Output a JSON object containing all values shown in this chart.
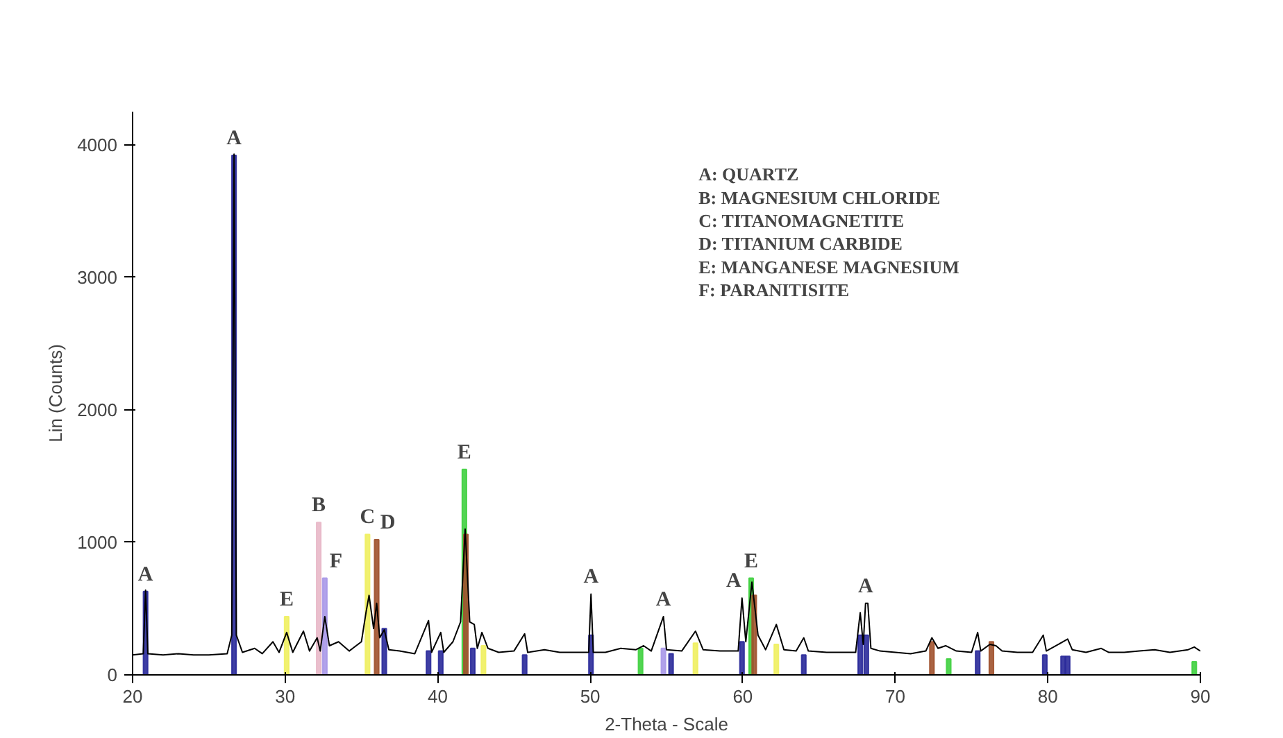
{
  "chart_data": {
    "type": "line",
    "xlabel": "2-Theta - Scale",
    "ylabel": "Lin (Counts)",
    "xlim": [
      20,
      90
    ],
    "ylim": [
      0,
      4250
    ],
    "xticks": [
      20,
      30,
      40,
      50,
      60,
      70,
      80,
      90
    ],
    "yticks": [
      0,
      1000,
      2000,
      3000,
      4000
    ],
    "grid": false,
    "line_style": "solid",
    "series": [
      {
        "color": "#000000",
        "x": [
          20,
          20.7,
          20.85,
          21.0,
          22,
          23,
          24,
          25,
          26.2,
          26.5,
          26.65,
          26.8,
          27.2,
          28,
          28.5,
          29.2,
          29.6,
          30.1,
          30.5,
          31.2,
          31.6,
          32.1,
          32.3,
          32.6,
          32.9,
          33.5,
          34.2,
          35.0,
          35.3,
          35.5,
          35.8,
          36.0,
          36.2,
          36.5,
          36.8,
          37.5,
          38.5,
          39.4,
          39.6,
          40.2,
          40.4,
          41.0,
          41.5,
          41.8,
          42.1,
          42.4,
          42.6,
          42.9,
          43.3,
          44,
          45.0,
          45.7,
          45.9,
          47,
          48,
          49,
          49.9,
          50.05,
          50.2,
          51,
          52,
          53,
          53.5,
          54.0,
          54.8,
          55.0,
          56,
          56.9,
          57.4,
          58.5,
          59.7,
          59.95,
          60.2,
          60.6,
          61.0,
          61.5,
          62.2,
          62.7,
          63.5,
          64.0,
          64.3,
          65.5,
          66.5,
          67.4,
          67.7,
          67.9,
          68.05,
          68.2,
          68.4,
          69,
          70,
          71,
          72,
          72.4,
          72.8,
          73.3,
          74,
          75.0,
          75.4,
          75.6,
          76.2,
          76.6,
          77,
          78,
          79,
          79.7,
          79.9,
          81.0,
          81.3,
          81.6,
          82.5,
          83.5,
          84,
          85,
          86,
          87,
          88,
          89.2,
          89.6,
          90
        ],
        "values": [
          150,
          160,
          640,
          160,
          150,
          160,
          150,
          150,
          160,
          300,
          3930,
          300,
          170,
          200,
          160,
          250,
          170,
          320,
          170,
          330,
          180,
          280,
          180,
          440,
          220,
          250,
          180,
          250,
          470,
          600,
          350,
          540,
          280,
          340,
          190,
          180,
          160,
          410,
          170,
          320,
          170,
          250,
          400,
          1100,
          400,
          380,
          200,
          320,
          200,
          170,
          180,
          310,
          170,
          190,
          170,
          170,
          170,
          610,
          170,
          170,
          200,
          190,
          220,
          180,
          440,
          190,
          180,
          330,
          190,
          180,
          180,
          580,
          250,
          700,
          300,
          190,
          380,
          190,
          180,
          280,
          180,
          170,
          170,
          170,
          470,
          230,
          540,
          540,
          200,
          180,
          170,
          160,
          180,
          280,
          200,
          220,
          180,
          170,
          320,
          180,
          230,
          220,
          180,
          170,
          170,
          300,
          180,
          250,
          270,
          190,
          170,
          200,
          170,
          170,
          180,
          190,
          170,
          190,
          210,
          180
        ]
      },
      {
        "type": "bar",
        "color": "#2a2a9a",
        "x": [
          20.85,
          26.65,
          36.5,
          39.4,
          40.2,
          42.3,
          45.7,
          50.05,
          55.3,
          59.95,
          64.0,
          67.7,
          68.1,
          75.4,
          79.8,
          81.0,
          81.3
        ],
        "values": [
          630,
          3920,
          350,
          180,
          180,
          200,
          150,
          300,
          160,
          250,
          150,
          300,
          300,
          180,
          150,
          140,
          140
        ]
      },
      {
        "type": "bar",
        "color": "#e8b8c8",
        "x": [
          32.2
        ],
        "values": [
          1150
        ]
      },
      {
        "type": "bar",
        "color": "#a898e8",
        "x": [
          32.6,
          54.8
        ],
        "values": [
          730,
          200
        ]
      },
      {
        "type": "bar",
        "color": "#f0f060",
        "x": [
          30.1,
          35.4,
          43.0,
          56.9,
          62.2
        ],
        "values": [
          440,
          1060,
          220,
          240,
          230
        ]
      },
      {
        "type": "bar",
        "color": "#40d040",
        "x": [
          41.75,
          53.3,
          60.55,
          73.5,
          89.6
        ],
        "values": [
          1550,
          200,
          730,
          120,
          100
        ]
      },
      {
        "type": "bar",
        "color": "#a0522d",
        "x": [
          36.0,
          41.85,
          60.75,
          72.4,
          76.3
        ],
        "values": [
          1020,
          1060,
          600,
          250,
          250
        ]
      }
    ],
    "annotations": [
      {
        "text": "A",
        "x": 20.85,
        "y": 630
      },
      {
        "text": "A",
        "x": 26.65,
        "y": 3920
      },
      {
        "text": "E",
        "x": 30.1,
        "y": 440
      },
      {
        "text": "B",
        "x": 32.2,
        "y": 1150
      },
      {
        "text": "F",
        "x": 32.6,
        "y": 730
      },
      {
        "text": "C",
        "x": 35.4,
        "y": 1060
      },
      {
        "text": "D",
        "x": 36.0,
        "y": 1020
      },
      {
        "text": "E",
        "x": 41.75,
        "y": 1550
      },
      {
        "text": "A",
        "x": 50.05,
        "y": 610
      },
      {
        "text": "A",
        "x": 54.8,
        "y": 440
      },
      {
        "text": "A",
        "x": 59.95,
        "y": 580
      },
      {
        "text": "E",
        "x": 60.55,
        "y": 730
      },
      {
        "text": "A",
        "x": 68.05,
        "y": 540
      },
      "A: QUARTZ",
      "B: MAGNESIUM CHLORIDE",
      "C: TITANOMAGNETITE",
      "D: TITANIUM CARBIDE",
      "E: MANGANESE MAGNESIUM",
      "F: PARANITISITE"
    ]
  }
}
